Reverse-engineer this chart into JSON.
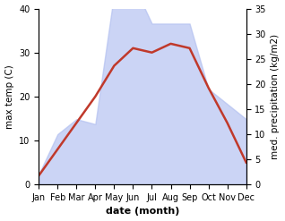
{
  "months": [
    "Jan",
    "Feb",
    "Mar",
    "Apr",
    "May",
    "Jun",
    "Jul",
    "Aug",
    "Sep",
    "Oct",
    "Nov",
    "Dec"
  ],
  "month_indices": [
    1,
    2,
    3,
    4,
    5,
    6,
    7,
    8,
    9,
    10,
    11,
    12
  ],
  "temp_max": [
    2,
    8,
    14,
    20,
    27,
    31,
    30,
    32,
    31,
    22,
    14,
    5
  ],
  "precipitation": [
    2,
    10,
    13,
    12,
    38,
    40,
    32,
    32,
    32,
    19,
    16,
    13
  ],
  "temp_ylim": [
    0,
    40
  ],
  "precip_ylim": [
    0,
    35
  ],
  "temp_yticks": [
    0,
    10,
    20,
    30,
    40
  ],
  "precip_yticks": [
    0,
    5,
    10,
    15,
    20,
    25,
    30,
    35
  ],
  "fill_color": "#b0bef0",
  "fill_alpha": 0.65,
  "line_color": "#c0392b",
  "line_width": 1.8,
  "xlabel": "date (month)",
  "ylabel_left": "max temp (C)",
  "ylabel_right": "med. precipitation (kg/m2)",
  "xlabel_fontsize": 8,
  "ylabel_fontsize": 7.5,
  "tick_fontsize": 7,
  "background_color": "#ffffff"
}
